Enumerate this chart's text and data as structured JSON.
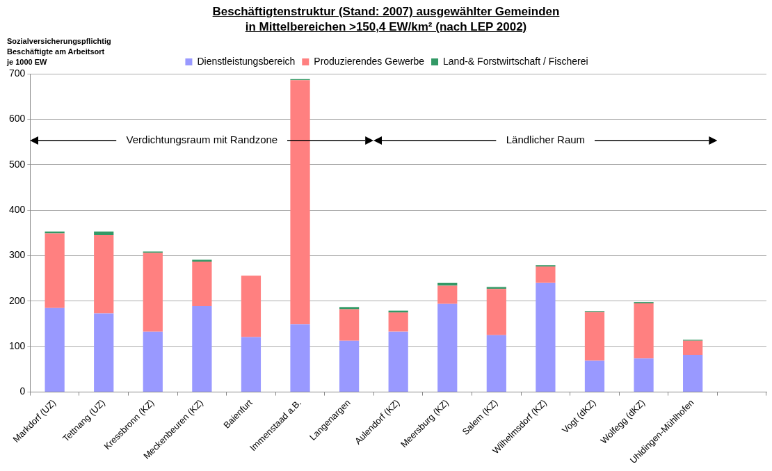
{
  "chart_data": {
    "type": "bar",
    "stacked": true,
    "title": "Beschäftigtenstruktur (Stand: 2007) ausgewählter Gemeinden\nin Mittelbereichen >150,4 EW/km² (nach LEP 2002)",
    "ylabel": "Sozialversicherungspflichtig\nBeschäftigte am Arbeitsort\nje 1000 EW",
    "categories": [
      "Markdorf (UZ)",
      "Tettnang (UZ)",
      "Kressbronn (KZ)",
      "Meckenbeuren (KZ)",
      "Baienfurt",
      "Immenstaad a.B.",
      "Langenargen",
      "Aulendorf (KZ)",
      "Meersburg (KZ)",
      "Salem (KZ)",
      "Wilhelmsdorf (KZ)",
      "Vogt (dKZ)",
      "Wolfegg (dKZ)",
      "Uhldingen-Mühlhofen",
      null
    ],
    "series": [
      {
        "name": "Dienstleistungsbereich",
        "color": "#9999ff",
        "values": [
          185,
          173,
          133,
          189,
          121,
          149,
          113,
          133,
          194,
          125,
          240,
          69,
          74,
          82,
          null
        ]
      },
      {
        "name": "Produzierendes Gewerbe",
        "color": "#ff8080",
        "values": [
          164,
          172,
          173,
          98,
          135,
          537,
          69,
          42,
          40,
          102,
          36,
          107,
          121,
          31,
          null
        ]
      },
      {
        "name": "Land-& Forstwirtschaft / Fischerei",
        "color": "#339966",
        "values": [
          4,
          8,
          3,
          4,
          null,
          2,
          5,
          4,
          6,
          4,
          3,
          2,
          3,
          2,
          null
        ]
      }
    ],
    "ylim": [
      0,
      700
    ],
    "yticks": [
      0,
      100,
      200,
      300,
      400,
      500,
      600,
      700
    ],
    "grid": "y",
    "legend": "top",
    "annotations": [
      "Verdichtungsraum mit Randzone",
      "Ländlicher Raum"
    ]
  }
}
